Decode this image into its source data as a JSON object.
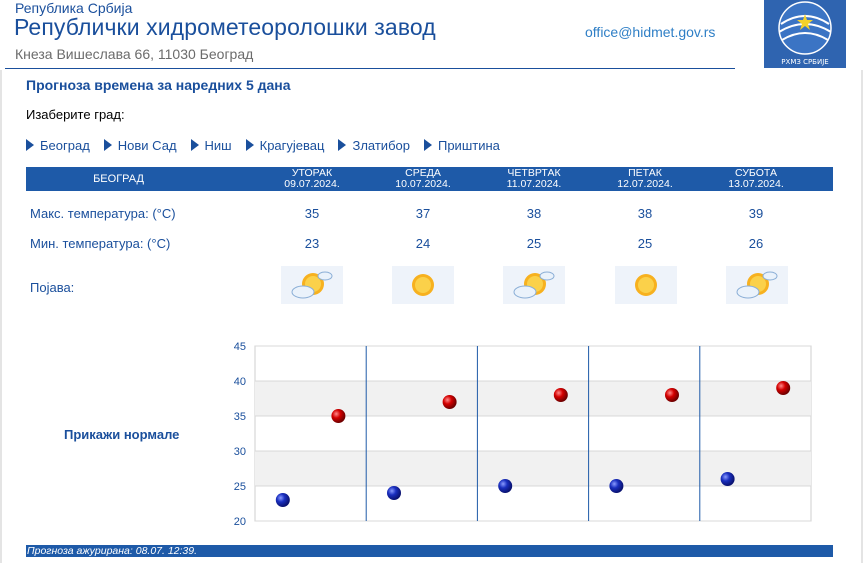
{
  "header": {
    "country": "Република Србија",
    "institute": "Републички хидрометеоролошки завод",
    "address": "Кнеза Вишеслава 66, 11030  Београд",
    "email": "office@hidmet.gov.rs",
    "logo_text": "РХМЗ СРБИЈЕ"
  },
  "page_title": "Прогноза времена за наредних 5 дана",
  "choose_city_label": "Изаберите град:",
  "cities": [
    "Београд",
    "Нови Сад",
    "Ниш",
    "Крагујевац",
    "Златибор",
    "Приштина"
  ],
  "forecast": {
    "city": "БЕОГРАД",
    "days": [
      {
        "name": "УТОРАК",
        "date": "09.07.2024.",
        "max": "35",
        "min": "23",
        "icon": "partly-cloudy-icon"
      },
      {
        "name": "СРЕДА",
        "date": "10.07.2024.",
        "max": "37",
        "min": "24",
        "icon": "sunny-icon"
      },
      {
        "name": "ЧЕТВРТАК",
        "date": "11.07.2024.",
        "max": "38",
        "min": "25",
        "icon": "partly-cloudy-icon"
      },
      {
        "name": "ПЕТАК",
        "date": "12.07.2024.",
        "max": "38",
        "min": "25",
        "icon": "sunny-icon"
      },
      {
        "name": "СУБОТА",
        "date": "13.07.2024.",
        "max": "39",
        "min": "26",
        "icon": "partly-cloudy-icon"
      }
    ],
    "labels": {
      "max": "Макс. температура: (°C)",
      "min": "Мин. температура: (°C)",
      "phenomenon": "Појава:"
    }
  },
  "show_normals_label": "Прикажи нормале",
  "chart_data": {
    "type": "scatter",
    "x": [
      "09.07.2024.",
      "10.07.2024.",
      "11.07.2024.",
      "12.07.2024.",
      "13.07.2024."
    ],
    "series": [
      {
        "values": [
          35,
          37,
          38,
          38,
          39
        ],
        "color": "#cc0000"
      },
      {
        "values": [
          23,
          24,
          25,
          25,
          26
        ],
        "color": "#1a2fbf"
      }
    ],
    "ylim": [
      20,
      45
    ],
    "yticks": [
      "20",
      "25",
      "30",
      "35",
      "40",
      "45"
    ],
    "grid": true
  },
  "updated_text": "Прогноза ажурирана:  08.07. 12:39.",
  "colors": {
    "brand": "#1a4f9c",
    "header_bar": "#1e5aa8",
    "max_marker": "#cc0000",
    "min_marker": "#1a2fbf"
  }
}
